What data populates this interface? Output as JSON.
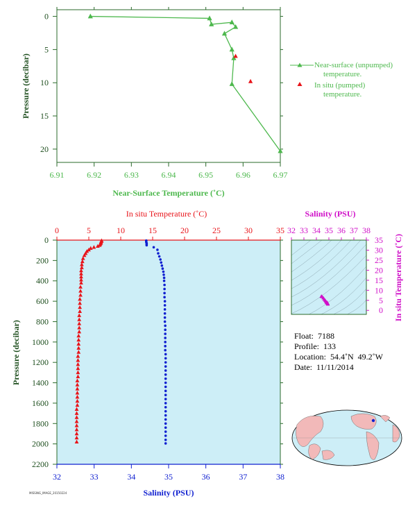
{
  "colors": {
    "green": "#4db84d",
    "tick_text": "#1f4f1f",
    "red": "#e8141a",
    "blue": "#1020d0",
    "magenta": "#d010c8",
    "panel_bg": "#cdeef7",
    "land": "#f2b9b9",
    "axis": "#2a6a2a"
  },
  "top_chart": {
    "xlabel": "Near-Surface Temperature (˚C)",
    "ylabel": "Pressure (decibar)",
    "legend_unpumped_line1": "Near-surface (unpumped)",
    "legend_unpumped_line2": "temperature.",
    "legend_pumped_line1": "In situ (pumped)",
    "legend_pumped_line2": "temperature."
  },
  "bottom_chart": {
    "top_xlabel": "In situ Temperature (˚C)",
    "bottom_xlabel": "Salinity (PSU)",
    "ylabel": "Pressure (decibar)"
  },
  "ts_chart": {
    "title": "Salinity (PSU)",
    "ylabel": "In situ Temperature (˚C)"
  },
  "info": {
    "float": "Float:  7188",
    "profile": "Profile:  133",
    "location": "Location:  54.4˚N  49.2˚W",
    "date": "Date:  11/11/2014"
  },
  "footer_tiny": "MISSING_IMAGE_20150224",
  "chart_data": [
    {
      "type": "line",
      "name": "near-surface temperature profile",
      "xlim": [
        6.91,
        6.97
      ],
      "ylim": [
        22,
        -1
      ],
      "x_ticks": [
        6.91,
        6.92,
        6.93,
        6.94,
        6.95,
        6.96,
        6.97
      ],
      "y_ticks": [
        0,
        5,
        10,
        15,
        20
      ],
      "series": [
        {
          "name": "Near-surface (unpumped) temperature.",
          "points": [
            [
              6.919,
              0.0
            ],
            [
              6.951,
              0.3
            ],
            [
              6.9515,
              1.2
            ],
            [
              6.957,
              0.9
            ],
            [
              6.958,
              1.6
            ],
            [
              6.955,
              2.6
            ],
            [
              6.957,
              5.0
            ],
            [
              6.9575,
              6.3
            ],
            [
              6.957,
              10.2
            ],
            [
              6.97,
              20.3
            ]
          ]
        },
        {
          "name": "In situ (pumped) temperature.",
          "points": [
            [
              6.958,
              6.0
            ],
            [
              6.962,
              9.8
            ]
          ]
        }
      ]
    },
    {
      "type": "scatter",
      "name": "deep profile",
      "ylim": [
        2200,
        0
      ],
      "y_ticks": [
        0,
        200,
        400,
        600,
        800,
        1000,
        1200,
        1400,
        1600,
        1800,
        2000,
        2200
      ],
      "temperature_axis": [
        0,
        35
      ],
      "temperature_ticks": [
        0,
        5,
        10,
        15,
        20,
        25,
        30,
        35
      ],
      "salinity_axis": [
        32,
        38
      ],
      "salinity_ticks": [
        32,
        33,
        34,
        35,
        36,
        37,
        38
      ],
      "series": [
        {
          "name": "In situ Temperature",
          "points": [
            [
              7.0,
              5
            ],
            [
              7.0,
              10
            ],
            [
              6.9,
              20
            ],
            [
              6.9,
              30
            ],
            [
              6.8,
              40
            ],
            [
              6.7,
              50
            ],
            [
              6.4,
              60
            ],
            [
              5.8,
              70
            ],
            [
              5.3,
              80
            ],
            [
              5.0,
              95
            ],
            [
              4.7,
              110
            ],
            [
              4.5,
              130
            ],
            [
              4.3,
              150
            ],
            [
              4.1,
              180
            ],
            [
              4.0,
              210
            ],
            [
              3.9,
              240
            ],
            [
              3.9,
              270
            ],
            [
              3.8,
              300
            ],
            [
              3.8,
              330
            ],
            [
              3.8,
              360
            ],
            [
              3.8,
              390
            ],
            [
              3.8,
              420
            ],
            [
              3.7,
              460
            ],
            [
              3.7,
              500
            ],
            [
              3.7,
              540
            ],
            [
              3.6,
              580
            ],
            [
              3.6,
              620
            ],
            [
              3.6,
              660
            ],
            [
              3.6,
              700
            ],
            [
              3.5,
              740
            ],
            [
              3.5,
              780
            ],
            [
              3.5,
              820
            ],
            [
              3.5,
              860
            ],
            [
              3.5,
              900
            ],
            [
              3.4,
              940
            ],
            [
              3.4,
              980
            ],
            [
              3.4,
              1020
            ],
            [
              3.4,
              1060
            ],
            [
              3.4,
              1100
            ],
            [
              3.3,
              1140
            ],
            [
              3.3,
              1180
            ],
            [
              3.3,
              1220
            ],
            [
              3.3,
              1260
            ],
            [
              3.3,
              1300
            ],
            [
              3.3,
              1340
            ],
            [
              3.2,
              1380
            ],
            [
              3.2,
              1420
            ],
            [
              3.2,
              1460
            ],
            [
              3.2,
              1500
            ],
            [
              3.2,
              1540
            ],
            [
              3.2,
              1580
            ],
            [
              3.2,
              1620
            ],
            [
              3.1,
              1660
            ],
            [
              3.1,
              1700
            ],
            [
              3.1,
              1740
            ],
            [
              3.1,
              1780
            ],
            [
              3.1,
              1820
            ],
            [
              3.1,
              1860
            ],
            [
              3.1,
              1900
            ],
            [
              3.1,
              1940
            ],
            [
              3.1,
              1980
            ]
          ]
        },
        {
          "name": "Salinity",
          "points": [
            [
              34.4,
              5
            ],
            [
              34.4,
              10
            ],
            [
              34.4,
              20
            ],
            [
              34.41,
              30
            ],
            [
              34.41,
              40
            ],
            [
              34.41,
              50
            ],
            [
              34.6,
              70
            ],
            [
              34.7,
              95
            ],
            [
              34.72,
              130
            ],
            [
              34.75,
              160
            ],
            [
              34.78,
              190
            ],
            [
              34.8,
              220
            ],
            [
              34.82,
              250
            ],
            [
              34.84,
              280
            ],
            [
              34.86,
              310
            ],
            [
              34.87,
              340
            ],
            [
              34.88,
              370
            ],
            [
              34.88,
              400
            ],
            [
              34.89,
              440
            ],
            [
              34.89,
              480
            ],
            [
              34.89,
              520
            ],
            [
              34.89,
              560
            ],
            [
              34.9,
              600
            ],
            [
              34.9,
              640
            ],
            [
              34.9,
              680
            ],
            [
              34.9,
              720
            ],
            [
              34.9,
              760
            ],
            [
              34.9,
              800
            ],
            [
              34.91,
              840
            ],
            [
              34.91,
              880
            ],
            [
              34.91,
              920
            ],
            [
              34.91,
              960
            ],
            [
              34.91,
              1000
            ],
            [
              34.91,
              1040
            ],
            [
              34.91,
              1080
            ],
            [
              34.92,
              1120
            ],
            [
              34.92,
              1160
            ],
            [
              34.92,
              1200
            ],
            [
              34.92,
              1240
            ],
            [
              34.92,
              1280
            ],
            [
              34.92,
              1320
            ],
            [
              34.92,
              1360
            ],
            [
              34.92,
              1400
            ],
            [
              34.92,
              1440
            ],
            [
              34.92,
              1480
            ],
            [
              34.92,
              1520
            ],
            [
              34.92,
              1560
            ],
            [
              34.92,
              1600
            ],
            [
              34.92,
              1640
            ],
            [
              34.92,
              1680
            ],
            [
              34.92,
              1720
            ],
            [
              34.92,
              1760
            ],
            [
              34.92,
              1800
            ],
            [
              34.92,
              1840
            ],
            [
              34.92,
              1880
            ],
            [
              34.92,
              1920
            ],
            [
              34.92,
              1960
            ],
            [
              34.92,
              1995
            ]
          ]
        }
      ]
    },
    {
      "type": "scatter",
      "name": "T-S diagram",
      "xlim": [
        32,
        38
      ],
      "ylim": [
        -2,
        35
      ],
      "x_ticks": [
        32,
        33,
        34,
        35,
        36,
        37,
        38
      ],
      "y_ticks": [
        0,
        5,
        10,
        15,
        20,
        25,
        30,
        35
      ],
      "series": [
        {
          "name": "T-S points",
          "points": [
            [
              34.4,
              7.0
            ],
            [
              34.45,
              6.8
            ],
            [
              34.55,
              6.2
            ],
            [
              34.62,
              5.5
            ],
            [
              34.7,
              5.0
            ],
            [
              34.75,
              4.5
            ],
            [
              34.8,
              4.1
            ],
            [
              34.84,
              3.9
            ],
            [
              34.87,
              3.8
            ],
            [
              34.89,
              3.6
            ],
            [
              34.9,
              3.5
            ],
            [
              34.91,
              3.4
            ],
            [
              34.91,
              3.3
            ],
            [
              34.92,
              3.2
            ],
            [
              34.92,
              3.1
            ]
          ]
        }
      ]
    }
  ]
}
